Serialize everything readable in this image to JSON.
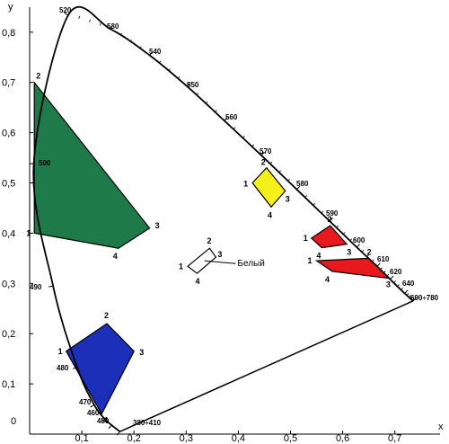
{
  "axes": {
    "x_name": "x",
    "y_name": "y",
    "origin_label": "0",
    "x_ticks": [
      "0,1",
      "0,2",
      "0,3",
      "0,4",
      "0,5",
      "0,6",
      "0,7"
    ],
    "y_ticks": [
      "0,1",
      "0,2",
      "0,3",
      "0,4",
      "0,5",
      "0,6",
      "0,7",
      "0,8"
    ]
  },
  "wavelength_labels": [
    "380÷410",
    "450",
    "460",
    "470",
    "480",
    "490",
    "500",
    "520",
    "530",
    "540",
    "550",
    "560",
    "570",
    "580",
    "590",
    "600",
    "610",
    "620",
    "640",
    "690÷780"
  ],
  "white_label": "Белый",
  "colors": {
    "green": "#1f7a4a",
    "blue": "#1b2fb8",
    "yellow": "#f5f01a",
    "red": "#e8191d",
    "white": "#ffffff"
  },
  "chart_data": {
    "type": "diagram",
    "xlim": [
      0,
      0.8
    ],
    "ylim": [
      0,
      0.84
    ],
    "spectral_locus": [
      {
        "label": "380÷410",
        "x": 0.173,
        "y": 0.005
      },
      {
        "label": "450",
        "x": 0.157,
        "y": 0.018
      },
      {
        "label": "460",
        "x": 0.144,
        "y": 0.03
      },
      {
        "label": "470",
        "x": 0.124,
        "y": 0.058
      },
      {
        "label": "480",
        "x": 0.091,
        "y": 0.133
      },
      {
        "label": "490",
        "x": 0.045,
        "y": 0.295
      },
      {
        "label": "500",
        "x": 0.008,
        "y": 0.538
      },
      {
        "label": "520",
        "x": 0.074,
        "y": 0.834
      },
      {
        "label": "530",
        "x": 0.155,
        "y": 0.806
      },
      {
        "label": "540",
        "x": 0.23,
        "y": 0.754
      },
      {
        "label": "550",
        "x": 0.302,
        "y": 0.692
      },
      {
        "label": "560",
        "x": 0.373,
        "y": 0.624
      },
      {
        "label": "570",
        "x": 0.444,
        "y": 0.555
      },
      {
        "label": "580",
        "x": 0.512,
        "y": 0.487
      },
      {
        "label": "590",
        "x": 0.575,
        "y": 0.424
      },
      {
        "label": "600",
        "x": 0.627,
        "y": 0.372
      },
      {
        "label": "610",
        "x": 0.666,
        "y": 0.334
      },
      {
        "label": "620",
        "x": 0.691,
        "y": 0.308
      },
      {
        "label": "640",
        "x": 0.719,
        "y": 0.28
      },
      {
        "label": "690÷780",
        "x": 0.735,
        "y": 0.265
      }
    ],
    "regions": [
      {
        "color": "green",
        "points": [
          {
            "n": "1",
            "x": 0.009,
            "y": 0.4
          },
          {
            "n": "2",
            "x": 0.009,
            "y": 0.7
          },
          {
            "n": "3",
            "x": 0.23,
            "y": 0.41
          },
          {
            "n": "4",
            "x": 0.17,
            "y": 0.37
          }
        ]
      },
      {
        "color": "blue",
        "points": [
          {
            "n": "1",
            "x": 0.07,
            "y": 0.165
          },
          {
            "n": "2",
            "x": 0.148,
            "y": 0.22
          },
          {
            "n": "3",
            "x": 0.2,
            "y": 0.165
          },
          {
            "n": "4",
            "x": 0.138,
            "y": 0.04
          }
        ]
      },
      {
        "color": "yellow",
        "points": [
          {
            "n": "1",
            "x": 0.427,
            "y": 0.5
          },
          {
            "n": "2",
            "x": 0.454,
            "y": 0.53
          },
          {
            "n": "3",
            "x": 0.49,
            "y": 0.484
          },
          {
            "n": "4",
            "x": 0.463,
            "y": 0.452
          }
        ]
      },
      {
        "color": "red",
        "points": [
          {
            "n": "1",
            "x": 0.54,
            "y": 0.39
          },
          {
            "n": "2",
            "x": 0.576,
            "y": 0.415
          },
          {
            "n": "3",
            "x": 0.608,
            "y": 0.378
          },
          {
            "n": "4",
            "x": 0.56,
            "y": 0.371
          }
        ]
      },
      {
        "color": "red",
        "points": [
          {
            "n": "1",
            "x": 0.55,
            "y": 0.345
          },
          {
            "n": "2",
            "x": 0.65,
            "y": 0.35
          },
          {
            "n": "3",
            "x": 0.69,
            "y": 0.31
          },
          {
            "n": "4",
            "x": 0.58,
            "y": 0.324
          }
        ]
      },
      {
        "color": "white",
        "points": [
          {
            "n": "1",
            "x": 0.303,
            "y": 0.334
          },
          {
            "n": "2",
            "x": 0.345,
            "y": 0.37
          },
          {
            "n": "3",
            "x": 0.357,
            "y": 0.352
          },
          {
            "n": "4",
            "x": 0.321,
            "y": 0.32
          }
        ]
      }
    ]
  }
}
